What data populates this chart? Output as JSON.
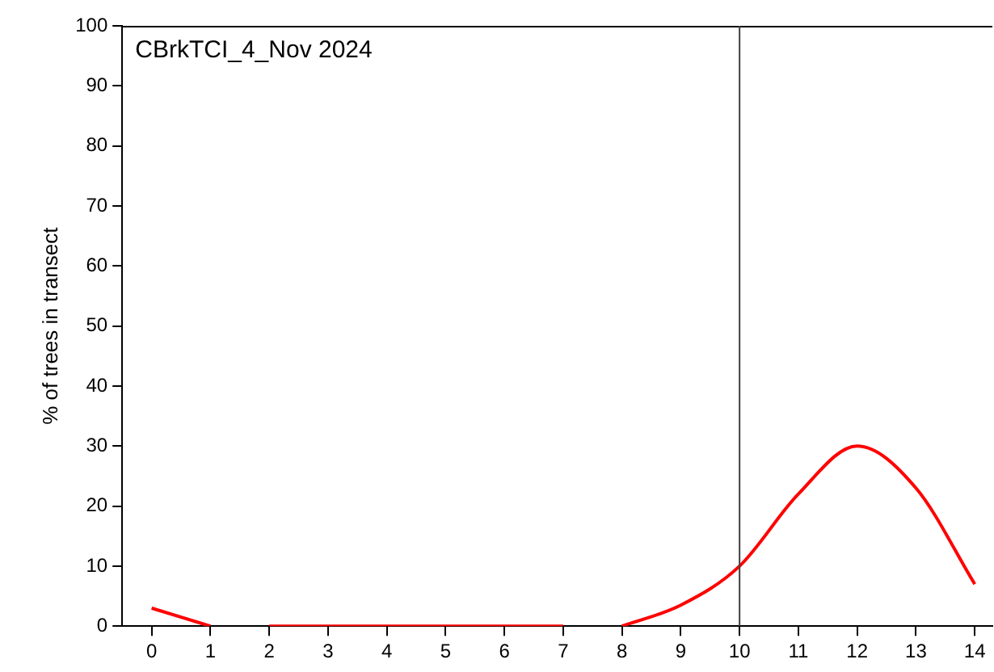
{
  "chart_data": {
    "type": "line",
    "ylabel": "% of trees in transect",
    "annotations": [
      "CBrkTCI_4_Nov 2024"
    ],
    "series": [
      {
        "color": "#ff0000",
        "x": [
          0,
          1,
          1.5,
          2,
          3,
          4,
          5,
          6,
          7,
          7.5,
          8,
          9,
          10,
          11,
          12,
          13,
          14
        ],
        "values": [
          3,
          0,
          null,
          0,
          0,
          0,
          0,
          0,
          0,
          null,
          0,
          3.5,
          10,
          22,
          30,
          23,
          7
        ]
      }
    ],
    "xlim": [
      -0.5,
      14.3
    ],
    "xticks": [
      0,
      1,
      2,
      3,
      4,
      5,
      6,
      7,
      8,
      9,
      10,
      11,
      12,
      13,
      14
    ],
    "ylim": [
      0,
      100
    ],
    "yticks": [
      0,
      10,
      20,
      30,
      40,
      50,
      60,
      70,
      80,
      90,
      100
    ],
    "ref_lines": [
      {
        "axis": "x",
        "value": 10,
        "color": "#404040"
      }
    ],
    "grid": false,
    "legend": false,
    "marker": "none",
    "line_style": "solid"
  }
}
